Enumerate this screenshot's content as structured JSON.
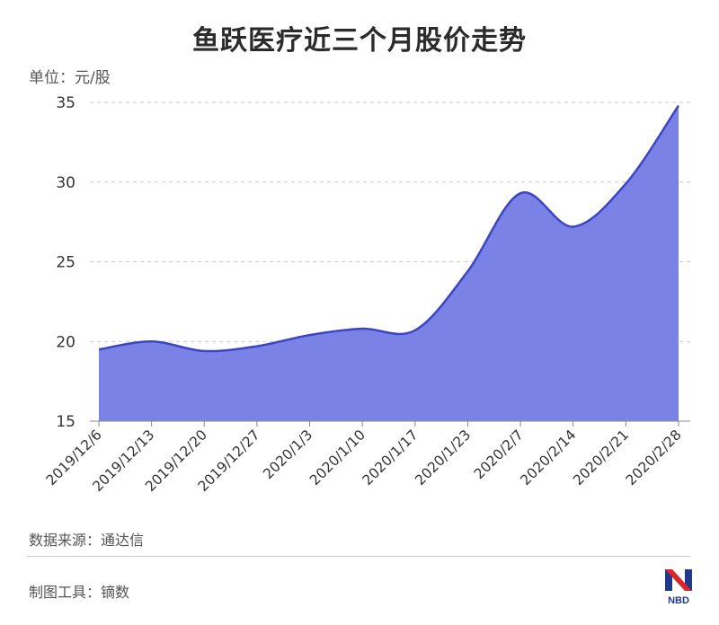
{
  "title": "鱼跃医疗近三个月股价走势",
  "unit_label": "单位：元/股",
  "source_label": "数据来源：通达信",
  "tool_label": "制图工具：镝数",
  "logo": {
    "text": "NBD",
    "icon": "nbd-logo"
  },
  "colors": {
    "fill": "#7a82e6",
    "line": "#3c45c6",
    "grid": "#c8c8c8",
    "axis": "#888888"
  },
  "chart_data": {
    "type": "area",
    "title": "鱼跃医疗近三个月股价走势",
    "ylabel": "单位：元/股",
    "xlabel": "",
    "categories": [
      "2019/12/6",
      "2019/12/13",
      "2019/12/20",
      "2019/12/27",
      "2020/1/3",
      "2020/1/10",
      "2020/1/17",
      "2020/1/23",
      "2020/2/7",
      "2020/2/14",
      "2020/2/21",
      "2020/2/28"
    ],
    "values": [
      19.5,
      20.0,
      19.4,
      19.7,
      20.4,
      20.8,
      20.7,
      24.4,
      29.3,
      27.2,
      29.9,
      34.8
    ],
    "ylim": [
      15,
      35
    ],
    "yticks": [
      15,
      20,
      25,
      30,
      35
    ],
    "grid": true,
    "legend": "none"
  }
}
